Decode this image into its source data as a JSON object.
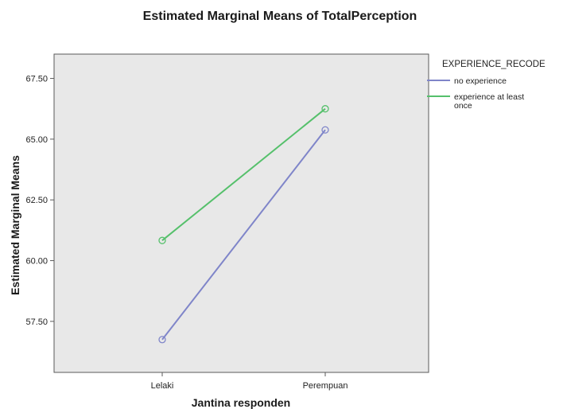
{
  "chart_data": {
    "type": "line",
    "title": "Estimated Marginal Means of TotalPerception",
    "xlabel": "Jantina responden",
    "ylabel": "Estimated Marginal Means",
    "categories": [
      "Lelaki",
      "Perempuan"
    ],
    "ylim": [
      55.4,
      68.5
    ],
    "yticks": [
      57.5,
      60.0,
      62.5,
      65.0,
      67.5
    ],
    "ytick_labels": [
      "57.50",
      "60.00",
      "62.50",
      "65.00",
      "67.50"
    ],
    "grid": false,
    "legend": {
      "title": "EXPERIENCE_RECODE",
      "position": "right"
    },
    "series": [
      {
        "name": "no experience",
        "values": [
          56.75,
          65.38
        ],
        "color": "#7f85c9"
      },
      {
        "name": "experience at least once",
        "values": [
          60.83,
          66.25
        ],
        "color": "#55c06b"
      }
    ],
    "plot_background": "#e8e8e8"
  }
}
